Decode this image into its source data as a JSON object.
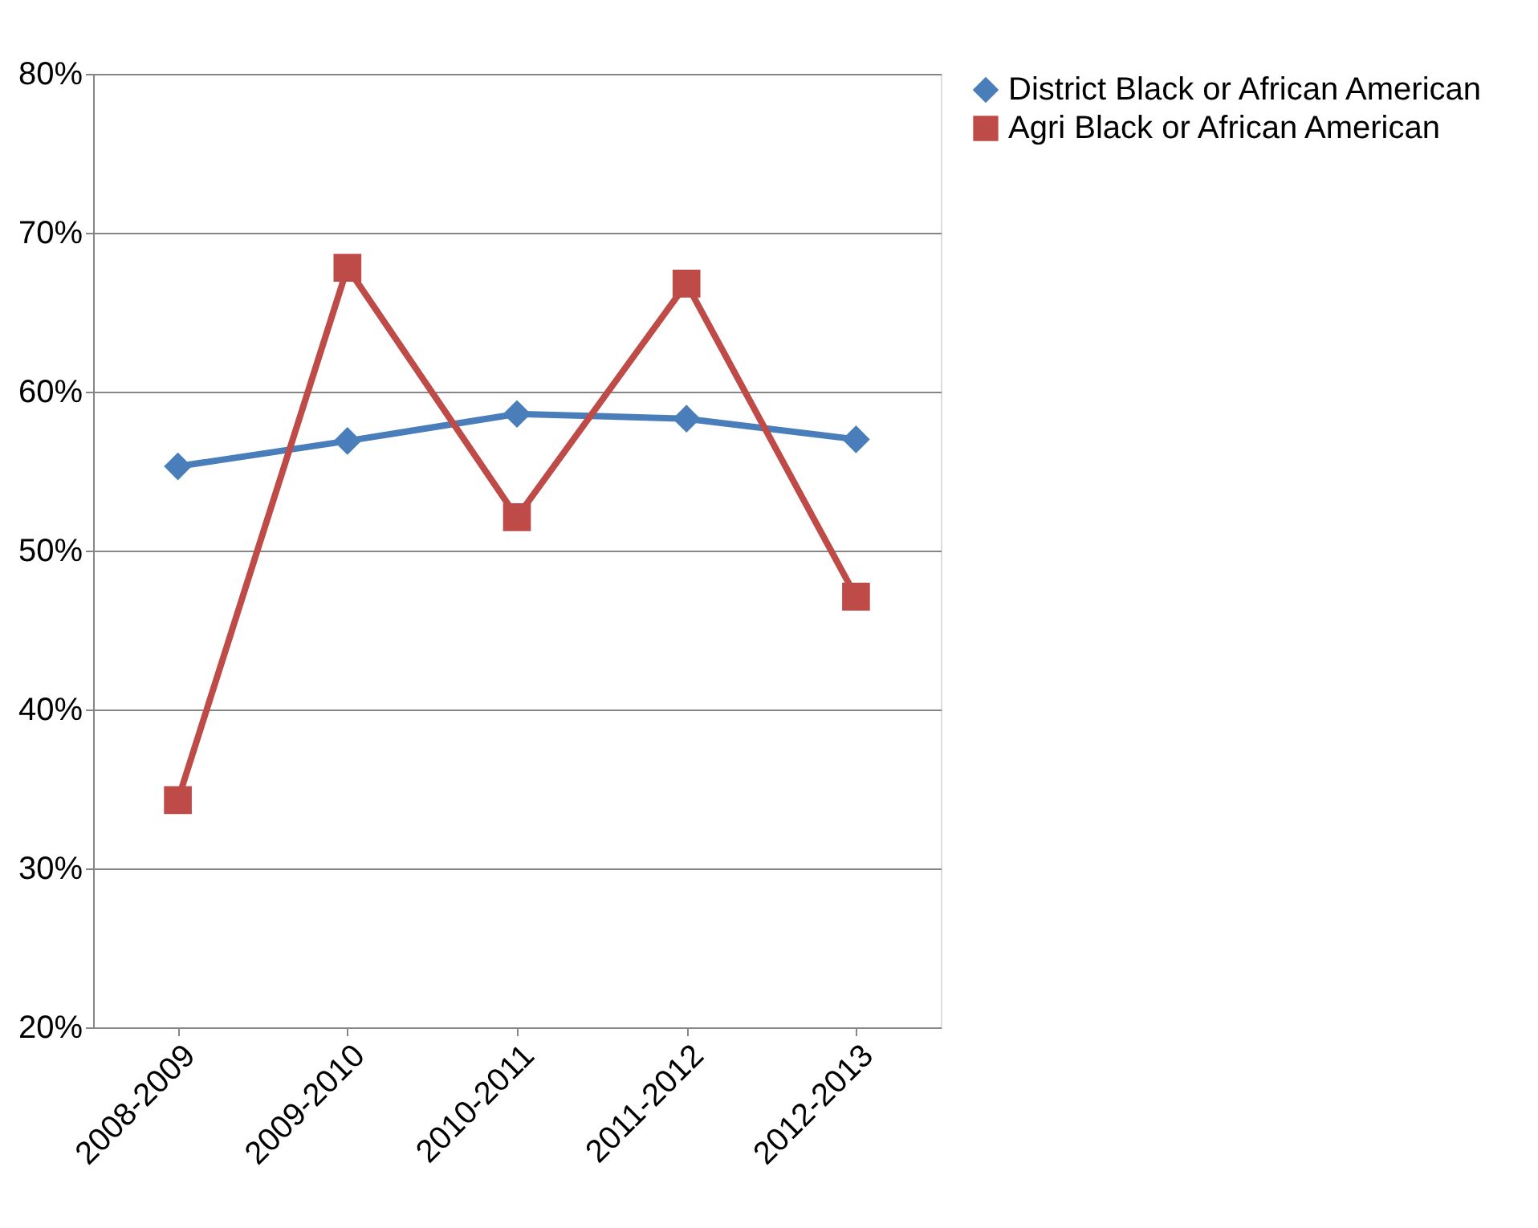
{
  "chart_data": {
    "type": "line",
    "categories": [
      "2008-2009",
      "2009-2010",
      "2010-2011",
      "2011-2012",
      "2012-2013"
    ],
    "series": [
      {
        "name": "District Black or African American",
        "color": "#4a7ebb",
        "marker": "diamond",
        "values": [
          55.3,
          56.9,
          58.6,
          58.3,
          57.0
        ]
      },
      {
        "name": "Agri Black or African American",
        "color": "#be4b48",
        "marker": "square",
        "values": [
          34.3,
          67.8,
          52.1,
          66.8,
          47.1
        ]
      }
    ],
    "ylim": [
      20,
      80
    ],
    "yticks": [
      {
        "value": 20,
        "label": "20%"
      },
      {
        "value": 30,
        "label": "30%"
      },
      {
        "value": 40,
        "label": "40%"
      },
      {
        "value": 50,
        "label": "50%"
      },
      {
        "value": 60,
        "label": "60%"
      },
      {
        "value": 70,
        "label": "70%"
      },
      {
        "value": 80,
        "label": "80%"
      }
    ],
    "grid": "y",
    "legend": "right",
    "line_style": "solid"
  }
}
